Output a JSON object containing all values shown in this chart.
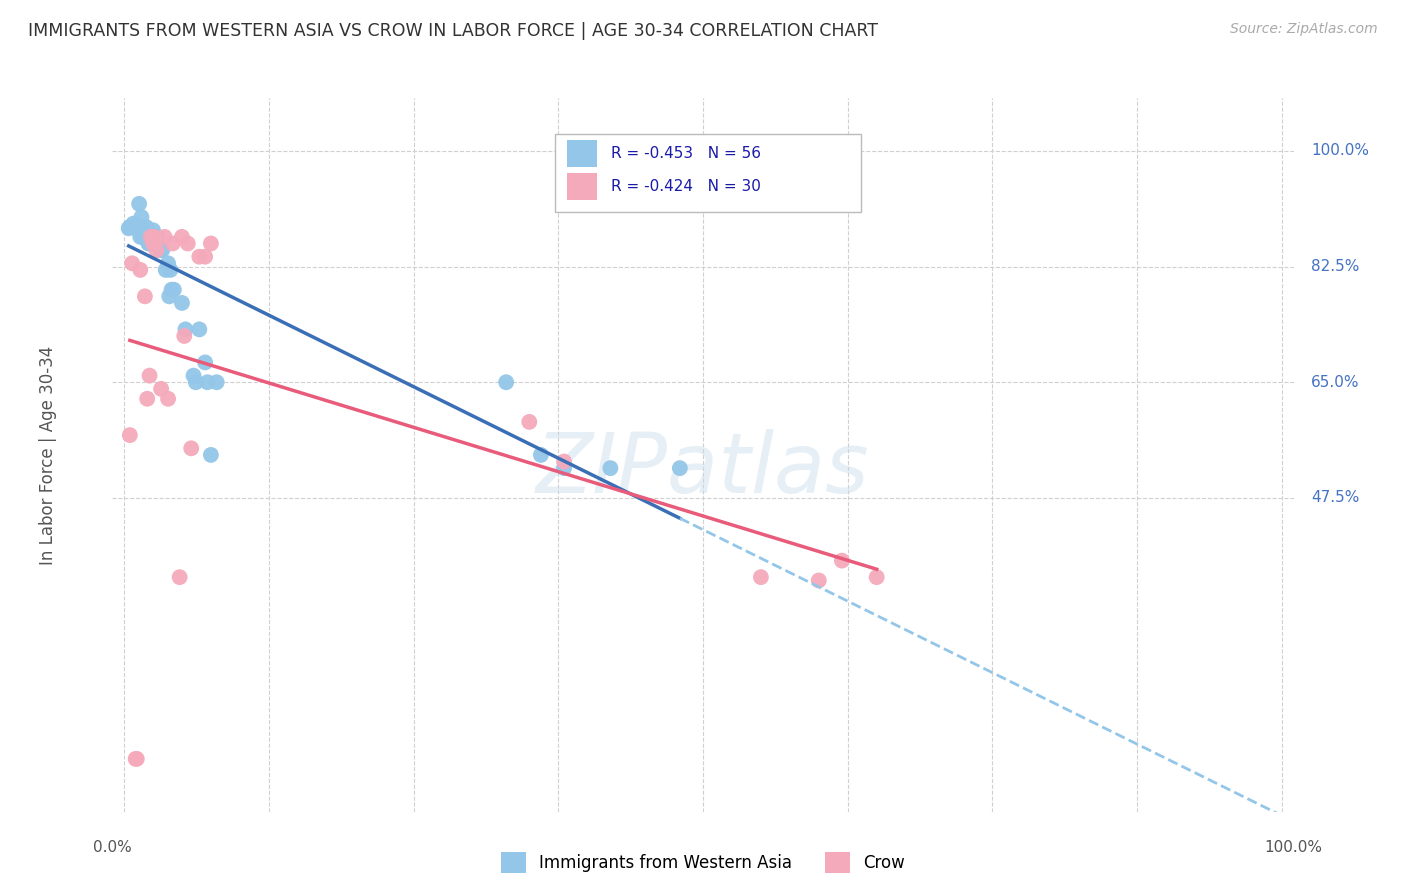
{
  "title": "IMMIGRANTS FROM WESTERN ASIA VS CROW IN LABOR FORCE | AGE 30-34 CORRELATION CHART",
  "source": "Source: ZipAtlas.com",
  "ylabel": "In Labor Force | Age 30-34",
  "legend_label1": "Immigrants from Western Asia",
  "legend_label2": "Crow",
  "R1": "-0.453",
  "N1": "56",
  "R2": "-0.424",
  "N2": "30",
  "color_blue": "#93C6E8",
  "color_pink": "#F5AABB",
  "line_blue": "#3B6FB5",
  "line_pink": "#E85B7A",
  "line_dashed_color": "#93C6E8",
  "blue_x": [
    0.004,
    0.005,
    0.006,
    0.008,
    0.009,
    0.01,
    0.011,
    0.012,
    0.013,
    0.013,
    0.014,
    0.015,
    0.015,
    0.016,
    0.016,
    0.017,
    0.018,
    0.018,
    0.019,
    0.019,
    0.02,
    0.02,
    0.021,
    0.021,
    0.022,
    0.022,
    0.023,
    0.024,
    0.025,
    0.025,
    0.026,
    0.027,
    0.028,
    0.029,
    0.031,
    0.033,
    0.036,
    0.038,
    0.039,
    0.04,
    0.041,
    0.043,
    0.05,
    0.053,
    0.06,
    0.062,
    0.065,
    0.07,
    0.072,
    0.075,
    0.08,
    0.33,
    0.36,
    0.38,
    0.42,
    0.48
  ],
  "blue_y": [
    0.883,
    0.885,
    0.885,
    0.89,
    0.885,
    0.883,
    0.883,
    0.885,
    0.92,
    0.88,
    0.87,
    0.88,
    0.9,
    0.87,
    0.88,
    0.875,
    0.875,
    0.88,
    0.875,
    0.885,
    0.87,
    0.875,
    0.87,
    0.86,
    0.86,
    0.875,
    0.87,
    0.87,
    0.87,
    0.88,
    0.86,
    0.86,
    0.86,
    0.87,
    0.85,
    0.85,
    0.82,
    0.83,
    0.78,
    0.82,
    0.79,
    0.79,
    0.77,
    0.73,
    0.66,
    0.65,
    0.73,
    0.68,
    0.65,
    0.54,
    0.65,
    0.65,
    0.54,
    0.52,
    0.52,
    0.52
  ],
  "pink_x": [
    0.005,
    0.007,
    0.01,
    0.011,
    0.014,
    0.018,
    0.02,
    0.022,
    0.023,
    0.025,
    0.026,
    0.028,
    0.032,
    0.035,
    0.038,
    0.042,
    0.048,
    0.05,
    0.052,
    0.055,
    0.058,
    0.065,
    0.07,
    0.075,
    0.35,
    0.38,
    0.55,
    0.6,
    0.62,
    0.65
  ],
  "pink_y": [
    0.57,
    0.83,
    0.08,
    0.08,
    0.82,
    0.78,
    0.625,
    0.66,
    0.87,
    0.86,
    0.87,
    0.85,
    0.64,
    0.87,
    0.625,
    0.86,
    0.355,
    0.87,
    0.72,
    0.86,
    0.55,
    0.84,
    0.84,
    0.86,
    0.59,
    0.53,
    0.355,
    0.35,
    0.38,
    0.355
  ],
  "xlim": [
    0.0,
    1.0
  ],
  "ylim": [
    0.0,
    1.08
  ],
  "ytick_values": [
    0.475,
    0.65,
    0.825,
    1.0
  ],
  "ytick_labels": [
    "47.5%",
    "65.0%",
    "82.5%",
    "100.0%"
  ],
  "xtick_left_label": "0.0%",
  "xtick_right_label": "100.0%",
  "grid_color": "#d0d0d0",
  "watermark": "ZIPatlas"
}
